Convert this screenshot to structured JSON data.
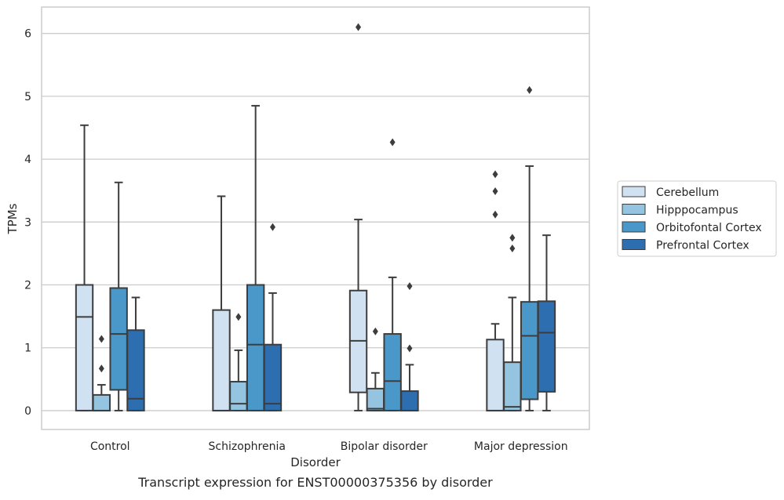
{
  "chart_data": {
    "type": "box",
    "title": "Transcript expression for ENST00000375356 by disorder",
    "xlabel": "Disorder",
    "ylabel": "TPMs",
    "ylim": [
      -0.3,
      6.42
    ],
    "yticks": [
      0,
      1,
      2,
      3,
      4,
      5,
      6
    ],
    "grid": true,
    "legend_position": "right",
    "categories": [
      "Control",
      "Schizophrenia",
      "Bipolar disorder",
      "Major depression"
    ],
    "series": [
      {
        "name": "Cerebellum",
        "color": "#d0e1f2",
        "boxes": [
          {
            "whisker_low": 0,
            "q1": 0,
            "median": 1.49,
            "q3": 2.0,
            "whisker_high": 4.54,
            "outliers": []
          },
          {
            "whisker_low": 0,
            "q1": 0,
            "median": 0,
            "q3": 1.6,
            "whisker_high": 3.41,
            "outliers": []
          },
          {
            "whisker_low": 0,
            "q1": 0.29,
            "median": 1.11,
            "q3": 1.91,
            "whisker_high": 3.04,
            "outliers": [
              6.1
            ]
          },
          {
            "whisker_low": 0,
            "q1": 0,
            "median": 0,
            "q3": 1.13,
            "whisker_high": 1.38,
            "outliers": [
              3.12,
              3.49,
              3.76
            ]
          }
        ]
      },
      {
        "name": "Hipppocampus",
        "color": "#94c4df",
        "boxes": [
          {
            "whisker_low": 0,
            "q1": 0,
            "median": 0,
            "q3": 0.25,
            "whisker_high": 0.41,
            "outliers": [
              0.67,
              1.14
            ]
          },
          {
            "whisker_low": 0,
            "q1": 0,
            "median": 0.11,
            "q3": 0.46,
            "whisker_high": 0.96,
            "outliers": [
              1.49
            ]
          },
          {
            "whisker_low": 0,
            "q1": 0,
            "median": 0.03,
            "q3": 0.35,
            "whisker_high": 0.6,
            "outliers": [
              1.26
            ]
          },
          {
            "whisker_low": 0,
            "q1": 0,
            "median": 0.06,
            "q3": 0.77,
            "whisker_high": 1.8,
            "outliers": [
              2.58,
              2.75
            ]
          }
        ]
      },
      {
        "name": "Orbitofontal Cortex",
        "color": "#4a98c9",
        "boxes": [
          {
            "whisker_low": 0,
            "q1": 0.33,
            "median": 1.22,
            "q3": 1.95,
            "whisker_high": 3.63,
            "outliers": []
          },
          {
            "whisker_low": 0,
            "q1": 0,
            "median": 1.05,
            "q3": 2.0,
            "whisker_high": 4.85,
            "outliers": []
          },
          {
            "whisker_low": 0,
            "q1": 0,
            "median": 0.47,
            "q3": 1.22,
            "whisker_high": 2.12,
            "outliers": [
              4.27
            ]
          },
          {
            "whisker_low": 0,
            "q1": 0.18,
            "median": 1.19,
            "q3": 1.73,
            "whisker_high": 3.89,
            "outliers": [
              5.1
            ]
          }
        ]
      },
      {
        "name": "Prefrontal Cortex",
        "color": "#2c6eaf",
        "boxes": [
          {
            "whisker_low": 0,
            "q1": 0,
            "median": 0.19,
            "q3": 1.28,
            "whisker_high": 1.8,
            "outliers": []
          },
          {
            "whisker_low": 0,
            "q1": 0,
            "median": 0.11,
            "q3": 1.05,
            "whisker_high": 1.87,
            "outliers": [
              2.92
            ]
          },
          {
            "whisker_low": 0,
            "q1": 0,
            "median": 0,
            "q3": 0.31,
            "whisker_high": 0.73,
            "outliers": [
              0.99,
              1.98
            ]
          },
          {
            "whisker_low": 0,
            "q1": 0.3,
            "median": 1.24,
            "q3": 1.74,
            "whisker_high": 2.79,
            "outliers": []
          }
        ]
      }
    ]
  }
}
